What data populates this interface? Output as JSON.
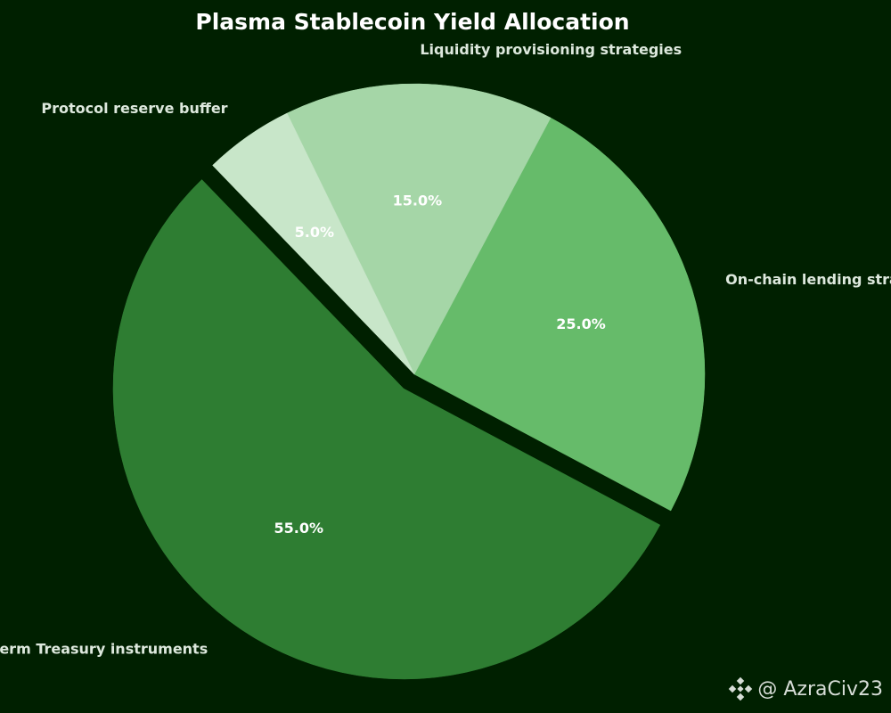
{
  "chart_data": {
    "type": "pie",
    "title": "Plasma Stablecoin Yield Allocation",
    "series": [
      {
        "label": "Short-term Treasury instruments",
        "value": 55.0,
        "pct_label": "55.0%",
        "color": "#2e7d32",
        "explode": true
      },
      {
        "label": "On-chain lending strategies",
        "value": 25.0,
        "pct_label": "25.0%",
        "color": "#66bb6a",
        "explode": false
      },
      {
        "label": "Liquidity provisioning strategies",
        "value": 15.0,
        "pct_label": "15.0%",
        "color": "#a5d6a7",
        "explode": false
      },
      {
        "label": "Protocol reserve buffer",
        "value": 5.0,
        "pct_label": "5.0%",
        "color": "#c8e6c9",
        "explode": false
      }
    ],
    "start_angle": "top, counter-clockwise",
    "legend": "none"
  },
  "watermark": {
    "handle": "@ AzraCiv23",
    "icon": "binance-logo-icon"
  },
  "colors": {
    "background": "#002000",
    "title": "#ffffff",
    "labels": "#dde8dd"
  }
}
